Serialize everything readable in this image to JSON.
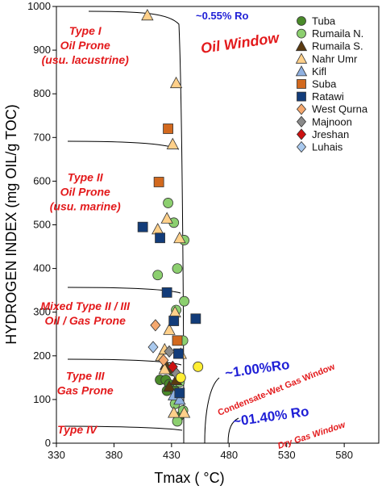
{
  "chart_data": {
    "type": "scatter",
    "xlabel": "Tmax ( °C)",
    "ylabel": "HYDROGEN INDEX (mg OIL/g TOC)",
    "xlim": [
      330,
      610
    ],
    "ylim": [
      0,
      1000
    ],
    "x_ticks": [
      330,
      380,
      430,
      480,
      530,
      580
    ],
    "y_ticks": [
      0,
      100,
      200,
      300,
      400,
      500,
      600,
      700,
      800,
      900,
      1000
    ],
    "grid": false,
    "legend_position": "top-right",
    "region_labels": [
      {
        "lines": [
          "Type I",
          "Oil Prone",
          "(usu. lacustrine)"
        ],
        "x": 355,
        "y": 935
      },
      {
        "lines": [
          "Type II",
          "Oil Prone",
          "(usu. marine)"
        ],
        "x": 355,
        "y": 600
      },
      {
        "lines": [
          "Mixed Type II / III",
          "Oil / Gas Prone"
        ],
        "x": 355,
        "y": 305
      },
      {
        "lines": [
          "Type III",
          "Gas Prone"
        ],
        "x": 355,
        "y": 145
      },
      {
        "lines": [
          "Type IV"
        ],
        "x": 348,
        "y": 22
      }
    ],
    "annotations": {
      "ro_055": "~0.55% Ro",
      "oil_window": "Oil Window",
      "ro_100": "~1.00%Ro",
      "condensate": "Condensate-Wet Gas Window",
      "ro_140": "~01.40% Ro",
      "dry_gas": "Dry Gas Window"
    },
    "series": [
      {
        "name": "Tuba",
        "marker": "circle",
        "color": "#4a8a2a",
        "points": [
          [
            420,
            145
          ],
          [
            425,
            145
          ],
          [
            428,
            135
          ],
          [
            426,
            120
          ],
          [
            433,
            120
          ],
          [
            436,
            60
          ],
          [
            431,
            165
          ]
        ]
      },
      {
        "name": "Rumaila N.",
        "marker": "circle",
        "color": "#8ccf6f",
        "points": [
          [
            427,
            550
          ],
          [
            432,
            505
          ],
          [
            441,
            465
          ],
          [
            435,
            400
          ],
          [
            418,
            385
          ],
          [
            441,
            325
          ],
          [
            434,
            305
          ],
          [
            440,
            235
          ],
          [
            437,
            140
          ],
          [
            433,
            90
          ],
          [
            435,
            50
          ],
          [
            440,
            75
          ]
        ]
      },
      {
        "name": "Rumaila S.",
        "marker": "triangle",
        "color": "#5a3a10",
        "points": [
          [
            425,
            180
          ],
          [
            430,
            170
          ],
          [
            428,
            130
          ],
          [
            434,
            145
          ]
        ]
      },
      {
        "name": "Nahr Umr",
        "marker": "triangle",
        "color": "#ffd08a",
        "points": [
          [
            409,
            980
          ],
          [
            434,
            825
          ],
          [
            431,
            685
          ],
          [
            426,
            515
          ],
          [
            418,
            490
          ],
          [
            437,
            470
          ],
          [
            433,
            300
          ],
          [
            428,
            260
          ],
          [
            438,
            205
          ],
          [
            421,
            200
          ],
          [
            424,
            215
          ],
          [
            424,
            170
          ],
          [
            432,
            70
          ],
          [
            441,
            70
          ]
        ]
      },
      {
        "name": "Kifl",
        "marker": "triangle",
        "color": "#8fb0e0",
        "points": [
          [
            432,
            110
          ],
          [
            437,
            100
          ]
        ]
      },
      {
        "name": "Suba",
        "marker": "square",
        "color": "#d2691e",
        "points": [
          [
            427,
            720
          ],
          [
            419,
            598
          ],
          [
            435,
            235
          ]
        ]
      },
      {
        "name": "Ratawi",
        "marker": "square",
        "color": "#123c7a",
        "points": [
          [
            405,
            495
          ],
          [
            420,
            470
          ],
          [
            426,
            345
          ],
          [
            432,
            280
          ],
          [
            451,
            285
          ],
          [
            436,
            205
          ],
          [
            437,
            115
          ]
        ]
      },
      {
        "name": "West Qurna",
        "marker": "diamond",
        "color": "#f5a86e",
        "points": [
          [
            416,
            270
          ],
          [
            423,
            190
          ]
        ]
      },
      {
        "name": "Majnoon",
        "marker": "diamond",
        "color": "#8a8a8a",
        "points": [
          [
            428,
            210
          ],
          [
            434,
            160
          ]
        ]
      },
      {
        "name": "Jreshan",
        "marker": "diamond",
        "color": "#cc1111",
        "points": [
          [
            431,
            175
          ]
        ]
      },
      {
        "name": "Luhais",
        "marker": "diamond",
        "color": "#a9c9ee",
        "points": [
          [
            414,
            220
          ]
        ]
      },
      {
        "name": "",
        "marker": "circle",
        "color": "#ffee33",
        "points": [
          [
            453,
            175
          ],
          [
            438,
            150
          ]
        ]
      }
    ]
  }
}
